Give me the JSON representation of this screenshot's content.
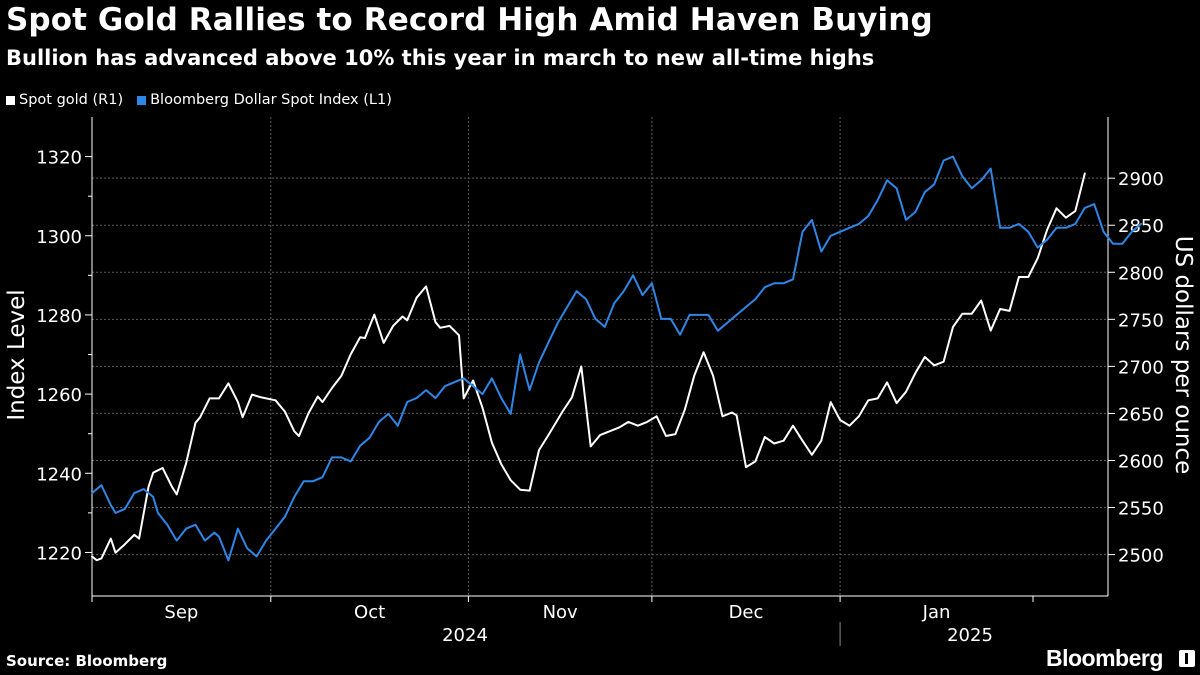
{
  "header": {
    "title": "Spot Gold Rallies to Record High Amid Haven Buying",
    "subtitle": "Bullion has advanced above 10% this year in march to new all-time highs"
  },
  "footer": {
    "source": "Source: Bloomberg",
    "brand": "Bloomberg"
  },
  "colors": {
    "gold": "#ffffff",
    "dollar": "#2e86e6",
    "grid": "#5a5a5a",
    "background": "#000000"
  },
  "chart_data": {
    "type": "line",
    "title": "Spot Gold Rallies to Record High Amid Haven Buying",
    "legend_position": "top-left",
    "y_left": {
      "label": "Index Level",
      "ticks": [
        1220,
        1240,
        1260,
        1280,
        1300,
        1320
      ],
      "range": [
        1209,
        1330
      ]
    },
    "y_right": {
      "label": "US dollars per ounce",
      "ticks": [
        2500,
        2550,
        2600,
        2650,
        2700,
        2750,
        2800,
        2850,
        2900
      ],
      "range": [
        2456,
        2965
      ]
    },
    "x": {
      "months": [
        "Sep",
        "Oct",
        "Nov",
        "Dec",
        "Jan"
      ],
      "years": [
        "2024",
        "2025"
      ],
      "range_days": [
        0,
        174
      ]
    },
    "series": [
      {
        "name": "Spot gold (R1)",
        "axis": "right",
        "points": [
          [
            0,
            2498
          ],
          [
            1,
            2494
          ],
          [
            2,
            2496
          ],
          [
            4,
            2517
          ],
          [
            5,
            2502
          ],
          [
            7,
            2511
          ],
          [
            9,
            2521
          ],
          [
            10,
            2517
          ],
          [
            12,
            2572
          ],
          [
            13,
            2587
          ],
          [
            15,
            2592
          ],
          [
            17,
            2572
          ],
          [
            18,
            2564
          ],
          [
            20,
            2597
          ],
          [
            22,
            2640
          ],
          [
            23,
            2646
          ],
          [
            25,
            2666
          ],
          [
            27,
            2666
          ],
          [
            29,
            2682
          ],
          [
            31,
            2662
          ],
          [
            32,
            2646
          ],
          [
            34,
            2670
          ],
          [
            36,
            2667
          ],
          [
            39,
            2664
          ],
          [
            41,
            2652
          ],
          [
            43,
            2631
          ],
          [
            44,
            2626
          ],
          [
            46,
            2650
          ],
          [
            48,
            2668
          ],
          [
            49,
            2662
          ],
          [
            51,
            2677
          ],
          [
            53,
            2690
          ],
          [
            55,
            2713
          ],
          [
            57,
            2731
          ],
          [
            58,
            2730
          ],
          [
            60,
            2755
          ],
          [
            62,
            2725
          ],
          [
            64,
            2743
          ],
          [
            66,
            2753
          ],
          [
            67,
            2749
          ],
          [
            69,
            2773
          ],
          [
            71,
            2785
          ],
          [
            73,
            2747
          ],
          [
            74,
            2741
          ],
          [
            76,
            2743
          ],
          [
            78,
            2733
          ],
          [
            79,
            2666
          ],
          [
            81,
            2685
          ],
          [
            83,
            2656
          ],
          [
            85,
            2619
          ],
          [
            87,
            2596
          ],
          [
            89,
            2579
          ],
          [
            91,
            2569
          ],
          [
            93,
            2568
          ],
          [
            95,
            2611
          ],
          [
            97,
            2627
          ],
          [
            100,
            2652
          ],
          [
            102,
            2667
          ],
          [
            104,
            2700
          ],
          [
            106,
            2615
          ],
          [
            108,
            2627
          ],
          [
            110,
            2631
          ],
          [
            112,
            2635
          ],
          [
            114,
            2641
          ],
          [
            116,
            2637
          ],
          [
            118,
            2641
          ],
          [
            120,
            2647
          ],
          [
            122,
            2626
          ],
          [
            124,
            2628
          ],
          [
            126,
            2654
          ],
          [
            128,
            2690
          ],
          [
            130,
            2715
          ],
          [
            132,
            2690
          ],
          [
            134,
            2647
          ],
          [
            136,
            2651
          ],
          [
            137,
            2648
          ],
          [
            139,
            2593
          ],
          [
            141,
            2599
          ],
          [
            143,
            2625
          ],
          [
            145,
            2618
          ],
          [
            147,
            2621
          ],
          [
            149,
            2637
          ],
          [
            151,
            2621
          ],
          [
            153,
            2606
          ],
          [
            155,
            2621
          ],
          [
            157,
            2662
          ],
          [
            159,
            2643
          ],
          [
            161,
            2637
          ],
          [
            163,
            2647
          ],
          [
            165,
            2664
          ],
          [
            167,
            2666
          ],
          [
            169,
            2683
          ],
          [
            171,
            2661
          ],
          [
            173,
            2673
          ],
          [
            175,
            2693
          ],
          [
            177,
            2710
          ],
          [
            179,
            2701
          ],
          [
            181,
            2705
          ],
          [
            183,
            2742
          ],
          [
            185,
            2756
          ],
          [
            187,
            2756
          ],
          [
            189,
            2770
          ],
          [
            191,
            2738
          ],
          [
            193,
            2761
          ],
          [
            195,
            2759
          ],
          [
            197,
            2795
          ],
          [
            199,
            2795
          ],
          [
            201,
            2815
          ],
          [
            203,
            2845
          ],
          [
            205,
            2868
          ],
          [
            207,
            2858
          ],
          [
            209,
            2865
          ],
          [
            211,
            2905
          ]
        ]
      },
      {
        "name": "Bloomberg Dollar Spot Index (L1)",
        "axis": "left",
        "points": [
          [
            0,
            1235
          ],
          [
            2,
            1237
          ],
          [
            4,
            1232
          ],
          [
            5,
            1230
          ],
          [
            7,
            1231
          ],
          [
            9,
            1235
          ],
          [
            11,
            1236
          ],
          [
            13,
            1234
          ],
          [
            14,
            1230
          ],
          [
            16,
            1227
          ],
          [
            18,
            1223
          ],
          [
            20,
            1226
          ],
          [
            22,
            1227
          ],
          [
            24,
            1223
          ],
          [
            26,
            1225
          ],
          [
            27,
            1224
          ],
          [
            29,
            1218
          ],
          [
            31,
            1226
          ],
          [
            33,
            1221
          ],
          [
            35,
            1219
          ],
          [
            37,
            1223
          ],
          [
            39,
            1226
          ],
          [
            41,
            1229
          ],
          [
            43,
            1234
          ],
          [
            45,
            1238
          ],
          [
            47,
            1238
          ],
          [
            49,
            1239
          ],
          [
            51,
            1244
          ],
          [
            53,
            1244
          ],
          [
            55,
            1243
          ],
          [
            57,
            1247
          ],
          [
            59,
            1249
          ],
          [
            61,
            1253
          ],
          [
            63,
            1255
          ],
          [
            65,
            1252
          ],
          [
            67,
            1258
          ],
          [
            69,
            1259
          ],
          [
            71,
            1261
          ],
          [
            73,
            1259
          ],
          [
            75,
            1262
          ],
          [
            77,
            1263
          ],
          [
            79,
            1264
          ],
          [
            81,
            1262
          ],
          [
            83,
            1260
          ],
          [
            85,
            1264
          ],
          [
            87,
            1259
          ],
          [
            89,
            1255
          ],
          [
            91,
            1270
          ],
          [
            93,
            1261
          ],
          [
            95,
            1268
          ],
          [
            97,
            1273
          ],
          [
            99,
            1278
          ],
          [
            101,
            1282
          ],
          [
            103,
            1286
          ],
          [
            105,
            1284
          ],
          [
            107,
            1279
          ],
          [
            109,
            1277
          ],
          [
            111,
            1283
          ],
          [
            113,
            1286
          ],
          [
            115,
            1290
          ],
          [
            117,
            1285
          ],
          [
            119,
            1288
          ],
          [
            121,
            1279
          ],
          [
            123,
            1279
          ],
          [
            125,
            1275
          ],
          [
            127,
            1280
          ],
          [
            129,
            1280
          ],
          [
            131,
            1280
          ],
          [
            133,
            1276
          ],
          [
            135,
            1278
          ],
          [
            137,
            1280
          ],
          [
            139,
            1282
          ],
          [
            141,
            1284
          ],
          [
            143,
            1287
          ],
          [
            145,
            1288
          ],
          [
            147,
            1288
          ],
          [
            149,
            1289
          ],
          [
            151,
            1301
          ],
          [
            153,
            1304
          ],
          [
            155,
            1296
          ],
          [
            157,
            1300
          ],
          [
            159,
            1301
          ],
          [
            161,
            1302
          ],
          [
            163,
            1303
          ],
          [
            165,
            1305
          ],
          [
            167,
            1309
          ],
          [
            169,
            1314
          ],
          [
            171,
            1312
          ],
          [
            173,
            1304
          ],
          [
            175,
            1306
          ],
          [
            177,
            1311
          ],
          [
            179,
            1313
          ],
          [
            181,
            1319
          ],
          [
            183,
            1320
          ],
          [
            185,
            1315
          ],
          [
            187,
            1312
          ],
          [
            189,
            1314
          ],
          [
            191,
            1317
          ],
          [
            193,
            1302
          ],
          [
            195,
            1302
          ],
          [
            197,
            1303
          ],
          [
            199,
            1301
          ],
          [
            201,
            1297
          ],
          [
            203,
            1299
          ],
          [
            205,
            1302
          ],
          [
            207,
            1302
          ],
          [
            209,
            1303
          ],
          [
            211,
            1307
          ],
          [
            213,
            1308
          ],
          [
            215,
            1301
          ],
          [
            217,
            1298
          ],
          [
            219,
            1298
          ],
          [
            221,
            1301
          ],
          [
            223,
            1303
          ]
        ]
      }
    ]
  }
}
